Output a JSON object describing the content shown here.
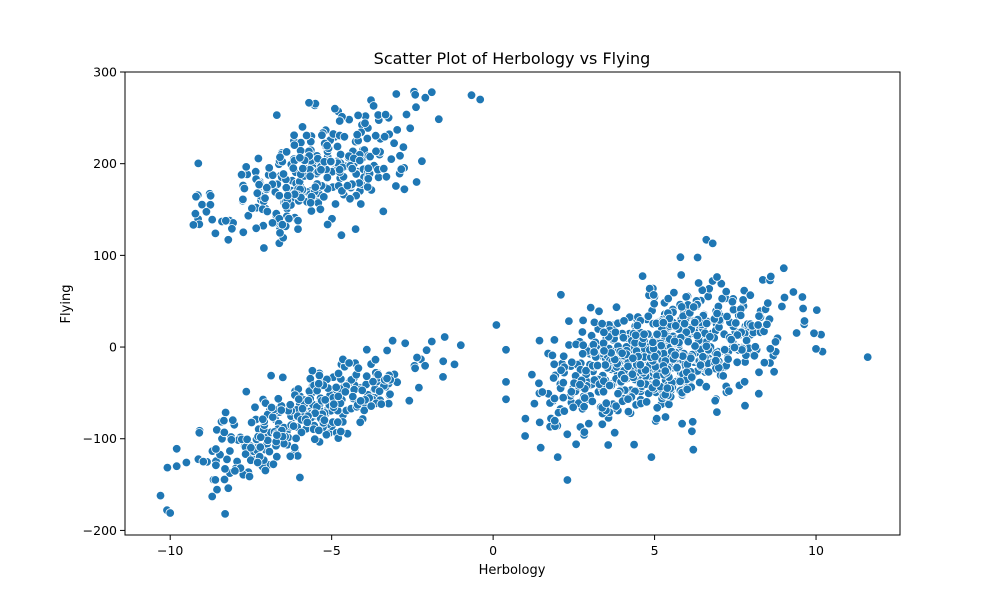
{
  "chart_data": {
    "type": "scatter",
    "title": "Scatter Plot of Herbology vs Flying",
    "xlabel": "Herbology",
    "ylabel": "Flying",
    "xlim": [
      -11.4,
      12.6
    ],
    "ylim": [
      -205,
      300
    ],
    "x_ticks": [
      -10,
      -5,
      0,
      5,
      10
    ],
    "y_ticks": [
      -200,
      -100,
      0,
      100,
      200,
      300
    ],
    "x_tick_labels": [
      "−10",
      "−5",
      "0",
      "5",
      "10"
    ],
    "y_tick_labels": [
      "−200",
      "−100",
      "0",
      "100",
      "200",
      "300"
    ],
    "grid": false,
    "legend": "none",
    "marker_color": "#1f77b4",
    "clusters": [
      {
        "center": [
          -5.5,
          190
        ],
        "spread": [
          1.5,
          35
        ],
        "correlation": 0.55,
        "count": 330,
        "x_range": [
          -9.3,
          -0.4
        ],
        "y_range": [
          105,
          280
        ]
      },
      {
        "center": [
          -5.6,
          -70
        ],
        "spread": [
          1.9,
          38
        ],
        "correlation": 0.85,
        "count": 330,
        "x_range": [
          -10.4,
          -1.0
        ],
        "y_range": [
          -185,
          15
        ]
      },
      {
        "center": [
          5.2,
          -10
        ],
        "spread": [
          1.7,
          33
        ],
        "correlation": 0.45,
        "count": 780,
        "x_range": [
          0.2,
          11.7
        ],
        "y_range": [
          -148,
          120
        ]
      }
    ],
    "points": [
      [
        -0.4,
        270
      ],
      [
        -1.9,
        278
      ],
      [
        -2.1,
        272
      ],
      [
        -3.0,
        276
      ],
      [
        -3.7,
        263
      ],
      [
        -4.9,
        260
      ],
      [
        -6.7,
        253
      ],
      [
        -8.2,
        117
      ],
      [
        -8.6,
        124
      ],
      [
        -9.2,
        164
      ],
      [
        -7.1,
        108
      ],
      [
        -4.7,
        122
      ],
      [
        -3.4,
        148
      ],
      [
        -10.3,
        -162
      ],
      [
        -10.1,
        -178
      ],
      [
        -10.0,
        -181
      ],
      [
        -8.3,
        -182
      ],
      [
        -9.8,
        -130
      ],
      [
        -9.8,
        -111
      ],
      [
        -8.7,
        -163
      ],
      [
        -8.2,
        -154
      ],
      [
        -1.5,
        11
      ],
      [
        -1.0,
        2
      ],
      [
        -1.9,
        6
      ],
      [
        11.6,
        -11
      ],
      [
        10.2,
        -5
      ],
      [
        10.0,
        -2
      ],
      [
        9.6,
        42
      ],
      [
        9.3,
        60
      ],
      [
        9.0,
        86
      ],
      [
        8.6,
        77
      ],
      [
        6.6,
        117
      ],
      [
        6.8,
        113
      ],
      [
        5.8,
        98
      ],
      [
        2.3,
        -145
      ],
      [
        2.0,
        -120
      ],
      [
        4.9,
        -120
      ],
      [
        6.2,
        -112
      ],
      [
        1.0,
        -78
      ],
      [
        0.4,
        -38
      ],
      [
        0.4,
        -57
      ],
      [
        0.1,
        24
      ],
      [
        0.4,
        -3
      ],
      [
        1.2,
        -30
      ],
      [
        2.1,
        57
      ],
      [
        7.8,
        -64
      ],
      [
        7.3,
        -48
      ],
      [
        8.7,
        -27
      ],
      [
        8.4,
        -17
      ]
    ]
  }
}
